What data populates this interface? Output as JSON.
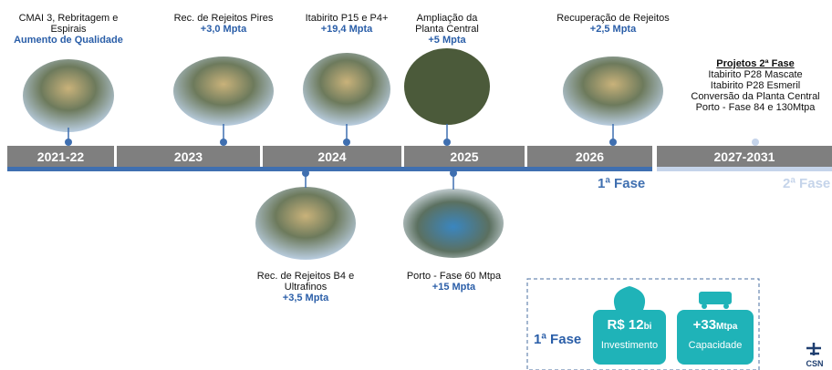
{
  "timeline": {
    "periods": [
      "2021-22",
      "2023",
      "2024",
      "2025",
      "2026",
      "2027-2031"
    ],
    "phases": [
      "1ª Fase",
      "2ª Fase"
    ]
  },
  "projects_top": [
    {
      "title": "CMAI 3, Rebritagem e Espirais",
      "detail": "Aumento de Qualidade"
    },
    {
      "title": "Rec. de Rejeitos Pires",
      "detail": "+3,0 Mpta"
    },
    {
      "title": "Itabirito P15 e P4+",
      "detail": "+19,4 Mpta"
    },
    {
      "title": "Ampliação da Planta Central",
      "detail": "+5 Mpta"
    },
    {
      "title": "Recuperação de Rejeitos",
      "detail": "+2,5 Mpta"
    }
  ],
  "projects_bottom": [
    {
      "title": "Rec. de Rejeitos B4 e Ultrafinos",
      "detail": "+3,5 Mpta"
    },
    {
      "title": "Porto - Fase 60 Mtpa",
      "detail": "+15 Mpta"
    }
  ],
  "phase2": {
    "title": "Projetos 2ª Fase",
    "items": [
      "Itabirito P28 Mascate",
      "Itabirito P28 Esmeril",
      "Conversão da Planta Central",
      "Porto - Fase 84 e 130Mtpa"
    ]
  },
  "summary": {
    "label": "1ª Fase",
    "cards": [
      {
        "value": "R$ 12",
        "unit": "bi",
        "caption": "Investimento"
      },
      {
        "value": "+33",
        "unit": "Mtpa",
        "caption": "Capacidade"
      }
    ]
  },
  "logo": "CSN"
}
